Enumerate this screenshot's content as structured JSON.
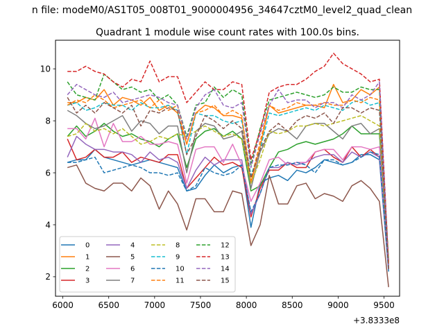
{
  "figure": {
    "suptitle": "n file: modeM0/AS1T05_008T01_9000004956_34647cztM0_level2_quad_clean",
    "title": "Quadrant 1 module wise count rates with 100.0s bins."
  },
  "chart_data": {
    "type": "line",
    "x_offset_label": "+3.8333e8",
    "xlim": [
      5920,
      9670
    ],
    "ylim": [
      1.25,
      11.1
    ],
    "xticks": [
      6000,
      6500,
      7000,
      7500,
      8000,
      8500,
      9000,
      9500
    ],
    "xtick_labels": [
      "6000",
      "6500",
      "7000",
      "7500",
      "8000",
      "8500",
      "9000",
      "9500"
    ],
    "yticks": [
      2,
      4,
      6,
      8,
      10
    ],
    "ytick_labels": [
      "2",
      "4",
      "6",
      "8",
      "10"
    ],
    "grid": false,
    "legend_position": "lower-left",
    "legend_columns": 4,
    "x": [
      6050,
      6150,
      6250,
      6350,
      6450,
      6550,
      6650,
      6750,
      6850,
      6950,
      7050,
      7150,
      7250,
      7350,
      7450,
      7550,
      7650,
      7750,
      7850,
      7950,
      8050,
      8150,
      8250,
      8350,
      8450,
      8550,
      8650,
      8750,
      8850,
      8950,
      9050,
      9150,
      9250,
      9350,
      9450,
      9550
    ],
    "series": [
      {
        "name": "0",
        "color": "#1f77b4",
        "dash": "solid",
        "values": [
          6.4,
          6.5,
          6.5,
          6.9,
          6.6,
          6.5,
          6.4,
          6.3,
          6.4,
          6.5,
          6.4,
          6.3,
          6.2,
          5.3,
          5.4,
          5.9,
          6.3,
          6.0,
          6.2,
          6.3,
          3.9,
          5.6,
          5.8,
          5.9,
          5.7,
          6.1,
          6.0,
          6.2,
          6.5,
          6.4,
          6.3,
          6.4,
          6.7,
          6.7,
          6.5,
          2.2
        ]
      },
      {
        "name": "1",
        "color": "#ff7f0e",
        "dash": "solid",
        "values": [
          8.7,
          8.7,
          8.9,
          8.8,
          9.2,
          8.6,
          8.9,
          8.8,
          8.6,
          8.9,
          8.4,
          8.6,
          8.3,
          7.1,
          8.3,
          8.6,
          8.5,
          8.2,
          8.2,
          8.1,
          5.6,
          7.0,
          8.6,
          8.3,
          8.4,
          8.5,
          8.6,
          8.6,
          8.5,
          9.4,
          8.7,
          8.8,
          9.2,
          9.0,
          9.3,
          2.5
        ]
      },
      {
        "name": "2",
        "color": "#2ca02c",
        "dash": "solid",
        "values": [
          7.4,
          7.8,
          7.4,
          7.6,
          7.9,
          7.6,
          7.4,
          7.5,
          7.3,
          7.2,
          7.0,
          7.3,
          7.5,
          6.2,
          7.3,
          7.6,
          7.7,
          7.4,
          7.6,
          7.3,
          5.3,
          5.5,
          6.2,
          6.8,
          6.9,
          7.1,
          7.2,
          7.1,
          7.2,
          7.3,
          7.5,
          7.8,
          7.5,
          7.5,
          7.5,
          2.3
        ]
      },
      {
        "name": "3",
        "color": "#d62728",
        "dash": "solid",
        "values": [
          7.3,
          6.5,
          6.6,
          6.9,
          6.6,
          6.6,
          6.8,
          6.4,
          6.6,
          6.5,
          6.4,
          6.7,
          6.7,
          5.4,
          5.8,
          6.2,
          6.6,
          6.3,
          6.4,
          6.2,
          4.3,
          5.4,
          6.1,
          6.1,
          6.4,
          6.2,
          6.2,
          6.8,
          6.9,
          6.6,
          6.4,
          7.0,
          6.6,
          6.9,
          6.6,
          2.4
        ]
      },
      {
        "name": "4",
        "color": "#9467bd",
        "dash": "solid",
        "values": [
          6.6,
          7.4,
          7.1,
          6.9,
          6.9,
          6.8,
          6.8,
          6.7,
          6.4,
          6.8,
          6.5,
          6.6,
          6.4,
          5.4,
          6.1,
          6.6,
          6.3,
          6.5,
          6.5,
          6.5,
          4.4,
          5.2,
          6.2,
          6.2,
          6.4,
          6.3,
          6.4,
          6.6,
          6.7,
          6.7,
          6.4,
          6.8,
          6.6,
          6.8,
          6.6,
          2.3
        ]
      },
      {
        "name": "5",
        "color": "#8c564b",
        "dash": "solid",
        "values": [
          6.2,
          6.3,
          5.6,
          5.4,
          5.3,
          5.6,
          5.6,
          5.3,
          5.8,
          5.5,
          4.6,
          5.3,
          4.8,
          3.8,
          5.0,
          5.0,
          4.5,
          4.5,
          5.3,
          5.2,
          3.2,
          4.0,
          5.9,
          4.8,
          4.8,
          5.5,
          5.6,
          5.0,
          5.2,
          5.1,
          4.9,
          5.5,
          5.7,
          5.4,
          4.9,
          1.6
        ]
      },
      {
        "name": "6",
        "color": "#e377c2",
        "dash": "solid",
        "values": [
          7.7,
          7.7,
          7.3,
          8.1,
          7.0,
          7.9,
          7.2,
          7.2,
          7.4,
          7.1,
          7.1,
          7.2,
          7.1,
          5.6,
          6.9,
          7.0,
          7.0,
          6.4,
          7.1,
          6.3,
          4.9,
          5.6,
          6.5,
          6.6,
          6.3,
          6.4,
          6.4,
          6.8,
          6.9,
          6.9,
          6.5,
          7.0,
          7.0,
          6.9,
          7.0,
          2.3
        ]
      },
      {
        "name": "7",
        "color": "#7f7f7f",
        "dash": "solid",
        "values": [
          8.4,
          8.2,
          7.9,
          7.7,
          7.8,
          8.0,
          8.2,
          7.6,
          8.0,
          7.9,
          7.5,
          7.8,
          7.8,
          6.0,
          7.6,
          7.9,
          7.8,
          7.3,
          7.4,
          7.6,
          5.4,
          6.8,
          7.5,
          7.7,
          7.6,
          7.3,
          7.8,
          7.9,
          7.9,
          7.6,
          7.3,
          7.8,
          7.9,
          7.5,
          7.7,
          2.3
        ]
      },
      {
        "name": "8",
        "color": "#bcbd22",
        "dash": "dashed",
        "values": [
          7.4,
          7.5,
          7.9,
          7.6,
          7.7,
          7.5,
          7.7,
          7.4,
          7.1,
          7.2,
          7.4,
          7.3,
          7.5,
          7.4,
          7.6,
          7.8,
          7.6,
          7.4,
          7.5,
          7.3,
          5.6,
          6.5,
          7.6,
          7.5,
          7.6,
          7.8,
          7.8,
          7.9,
          7.8,
          7.9,
          8.0,
          8.1,
          8.2,
          8.0,
          7.8,
          2.4
        ]
      },
      {
        "name": "9",
        "color": "#17becf",
        "dash": "dashed",
        "values": [
          8.6,
          8.7,
          8.4,
          8.5,
          8.7,
          8.6,
          8.6,
          8.4,
          8.7,
          8.5,
          8.5,
          8.6,
          8.4,
          6.7,
          8.3,
          8.2,
          8.2,
          8.0,
          7.9,
          8.0,
          5.9,
          6.9,
          8.3,
          8.2,
          8.3,
          8.4,
          8.5,
          8.4,
          8.6,
          8.5,
          8.4,
          8.7,
          8.8,
          8.6,
          8.7,
          2.4
        ]
      },
      {
        "name": "10",
        "color": "#1f77b4",
        "dash": "dashed",
        "values": [
          6.4,
          6.4,
          6.5,
          6.6,
          6.0,
          6.1,
          6.2,
          6.3,
          6.2,
          6.0,
          6.0,
          5.9,
          6.0,
          5.3,
          5.5,
          6.2,
          6.0,
          5.9,
          6.0,
          6.3,
          4.5,
          5.2,
          6.2,
          6.3,
          6.3,
          6.4,
          6.3,
          6.0,
          6.5,
          6.5,
          6.3,
          6.4,
          6.6,
          6.8,
          6.7,
          2.3
        ]
      },
      {
        "name": "11",
        "color": "#ff7f0e",
        "dash": "dashed",
        "values": [
          8.6,
          8.8,
          8.7,
          9.0,
          8.8,
          8.5,
          8.6,
          8.7,
          8.8,
          8.5,
          8.8,
          8.4,
          8.6,
          7.1,
          8.3,
          8.4,
          8.6,
          8.2,
          8.4,
          8.2,
          5.7,
          7.2,
          8.6,
          8.4,
          8.5,
          8.7,
          8.6,
          8.6,
          8.7,
          8.6,
          8.6,
          8.8,
          8.7,
          8.9,
          8.8,
          2.5
        ]
      },
      {
        "name": "12",
        "color": "#2ca02c",
        "dash": "dashed",
        "values": [
          9.5,
          9.0,
          8.9,
          8.8,
          9.8,
          9.5,
          9.2,
          9.3,
          9.1,
          9.2,
          8.8,
          9.0,
          8.6,
          7.4,
          8.6,
          8.7,
          9.3,
          8.9,
          9.2,
          9.0,
          6.3,
          7.7,
          8.8,
          8.9,
          9.0,
          9.1,
          9.0,
          8.9,
          9.0,
          9.3,
          9.1,
          9.1,
          9.3,
          9.2,
          9.2,
          2.6
        ]
      },
      {
        "name": "13",
        "color": "#d62728",
        "dash": "dashed",
        "values": [
          9.9,
          9.9,
          10.1,
          9.9,
          9.8,
          9.5,
          9.3,
          9.6,
          9.5,
          10.3,
          9.5,
          9.7,
          9.7,
          8.7,
          9.1,
          9.5,
          9.2,
          9.2,
          9.5,
          9.4,
          6.5,
          7.6,
          9.1,
          9.3,
          9.4,
          9.4,
          9.6,
          9.9,
          10.1,
          10.6,
          10.2,
          10.0,
          9.8,
          9.5,
          9.6,
          2.5
        ]
      },
      {
        "name": "14",
        "color": "#9467bd",
        "dash": "dashed",
        "values": [
          9.0,
          9.4,
          9.2,
          9.0,
          8.9,
          9.1,
          8.7,
          8.8,
          8.9,
          9.0,
          8.9,
          8.7,
          8.6,
          7.3,
          8.5,
          9.0,
          9.2,
          8.6,
          8.5,
          8.7,
          6.2,
          7.5,
          8.6,
          9.2,
          8.7,
          8.8,
          8.8,
          8.5,
          8.7,
          8.7,
          8.5,
          9.0,
          8.8,
          9.0,
          9.5,
          2.3
        ]
      },
      {
        "name": "15",
        "color": "#8c564b",
        "dash": "dashed",
        "values": [
          8.9,
          8.3,
          8.6,
          8.3,
          8.7,
          8.5,
          8.3,
          8.6,
          7.8,
          8.4,
          8.3,
          8.5,
          8.4,
          6.7,
          7.4,
          8.2,
          8.0,
          7.7,
          8.0,
          7.7,
          5.8,
          6.9,
          7.6,
          7.9,
          7.6,
          8.0,
          8.2,
          8.1,
          8.3,
          7.9,
          8.5,
          8.5,
          8.3,
          8.5,
          8.4,
          2.3
        ]
      }
    ]
  }
}
